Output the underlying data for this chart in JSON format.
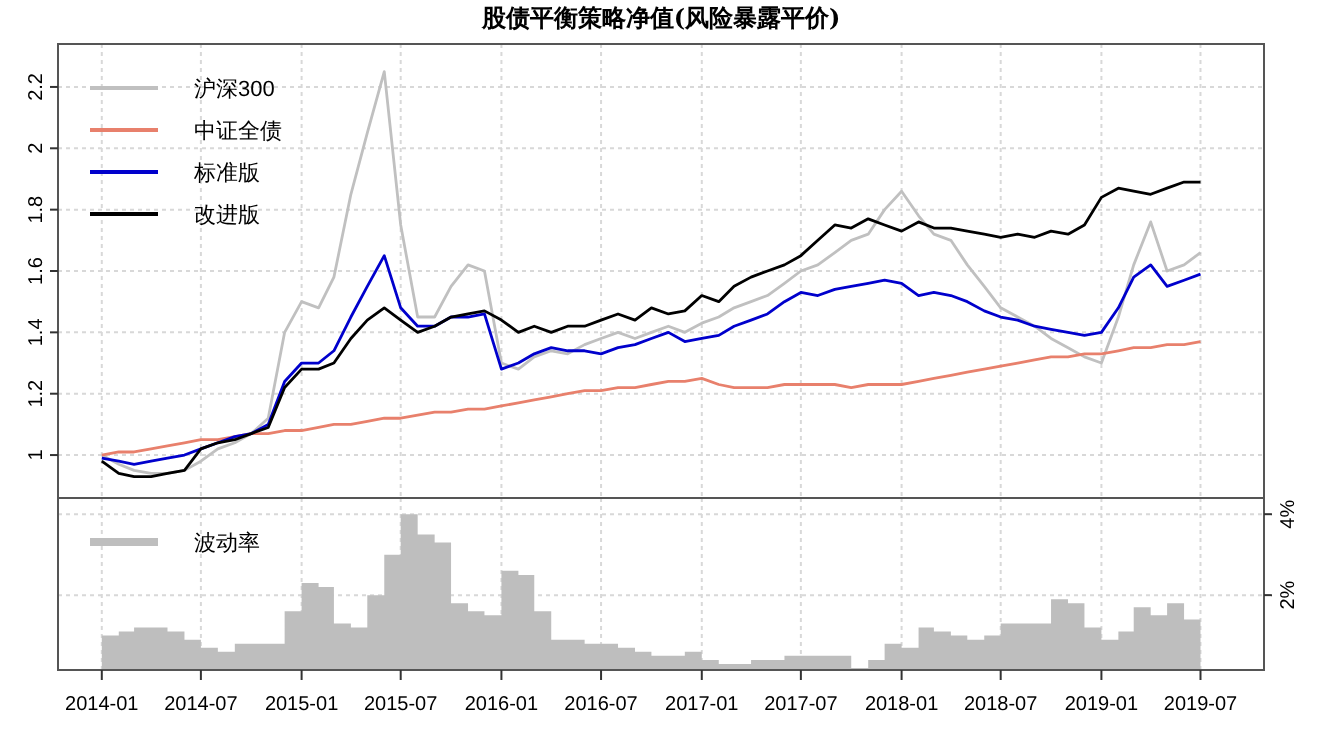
{
  "chart_data": [
    {
      "type": "line",
      "title": "股债平衡策略净值(风险暴露平价)",
      "grid": true,
      "legend": "top left",
      "tick_labels": "y",
      "line_style": "solid",
      "x": [
        "2014-01",
        "2014-02",
        "2014-03",
        "2014-04",
        "2014-05",
        "2014-06",
        "2014-07",
        "2014-08",
        "2014-09",
        "2014-10",
        "2014-11",
        "2014-12",
        "2015-01",
        "2015-02",
        "2015-03",
        "2015-04",
        "2015-05",
        "2015-06",
        "2015-07",
        "2015-08",
        "2015-09",
        "2015-10",
        "2015-11",
        "2015-12",
        "2016-01",
        "2016-02",
        "2016-03",
        "2016-04",
        "2016-05",
        "2016-06",
        "2016-07",
        "2016-08",
        "2016-09",
        "2016-10",
        "2016-11",
        "2016-12",
        "2017-01",
        "2017-02",
        "2017-03",
        "2017-04",
        "2017-05",
        "2017-06",
        "2017-07",
        "2017-08",
        "2017-09",
        "2017-10",
        "2017-11",
        "2017-12",
        "2018-01",
        "2018-02",
        "2018-03",
        "2018-04",
        "2018-05",
        "2018-06",
        "2018-07",
        "2018-08",
        "2018-09",
        "2018-10",
        "2018-11",
        "2018-12",
        "2019-01",
        "2019-02",
        "2019-03",
        "2019-04",
        "2019-05",
        "2019-06",
        "2019-07"
      ],
      "xlim": [
        "2013-10-13",
        "2019-10-25"
      ],
      "xticks": [
        "2014-01",
        "2014-07",
        "2015-01",
        "2015-07",
        "2016-01",
        "2016-07",
        "2017-01",
        "2017-07",
        "2018-01",
        "2018-07",
        "2019-01",
        "2019-07"
      ],
      "ylim": [
        0.86,
        2.34
      ],
      "yticks": [
        1.0,
        1.2,
        1.4,
        1.6,
        1.8,
        2.0,
        2.2
      ],
      "series": [
        {
          "name": "沪深300",
          "color": "#c0c0c0",
          "values": [
            1.0,
            0.97,
            0.95,
            0.94,
            0.94,
            0.95,
            0.98,
            1.02,
            1.04,
            1.07,
            1.12,
            1.4,
            1.5,
            1.48,
            1.58,
            1.85,
            2.05,
            2.25,
            1.75,
            1.45,
            1.45,
            1.55,
            1.62,
            1.6,
            1.3,
            1.28,
            1.32,
            1.34,
            1.33,
            1.36,
            1.38,
            1.4,
            1.38,
            1.4,
            1.42,
            1.4,
            1.43,
            1.45,
            1.48,
            1.5,
            1.52,
            1.56,
            1.6,
            1.62,
            1.66,
            1.7,
            1.72,
            1.8,
            1.86,
            1.78,
            1.72,
            1.7,
            1.62,
            1.55,
            1.48,
            1.45,
            1.42,
            1.38,
            1.35,
            1.32,
            1.3,
            1.45,
            1.62,
            1.76,
            1.6,
            1.62,
            1.66
          ]
        },
        {
          "name": "中证全债",
          "color": "#e8806c",
          "values": [
            1.0,
            1.01,
            1.01,
            1.02,
            1.03,
            1.04,
            1.05,
            1.05,
            1.06,
            1.07,
            1.07,
            1.08,
            1.08,
            1.09,
            1.1,
            1.1,
            1.11,
            1.12,
            1.12,
            1.13,
            1.14,
            1.14,
            1.15,
            1.15,
            1.16,
            1.17,
            1.18,
            1.19,
            1.2,
            1.21,
            1.21,
            1.22,
            1.22,
            1.23,
            1.24,
            1.24,
            1.25,
            1.23,
            1.22,
            1.22,
            1.22,
            1.23,
            1.23,
            1.23,
            1.23,
            1.22,
            1.23,
            1.23,
            1.23,
            1.24,
            1.25,
            1.26,
            1.27,
            1.28,
            1.29,
            1.3,
            1.31,
            1.32,
            1.32,
            1.33,
            1.33,
            1.34,
            1.35,
            1.35,
            1.36,
            1.36,
            1.37
          ]
        },
        {
          "name": "标准版",
          "color": "#0000cc",
          "values": [
            0.99,
            0.98,
            0.97,
            0.98,
            0.99,
            1.0,
            1.02,
            1.04,
            1.06,
            1.07,
            1.1,
            1.24,
            1.3,
            1.3,
            1.34,
            1.45,
            1.55,
            1.65,
            1.48,
            1.42,
            1.42,
            1.45,
            1.45,
            1.46,
            1.28,
            1.3,
            1.33,
            1.35,
            1.34,
            1.34,
            1.33,
            1.35,
            1.36,
            1.38,
            1.4,
            1.37,
            1.38,
            1.39,
            1.42,
            1.44,
            1.46,
            1.5,
            1.53,
            1.52,
            1.54,
            1.55,
            1.56,
            1.57,
            1.56,
            1.52,
            1.53,
            1.52,
            1.5,
            1.47,
            1.45,
            1.44,
            1.42,
            1.41,
            1.4,
            1.39,
            1.4,
            1.48,
            1.58,
            1.62,
            1.55,
            1.57,
            1.59
          ]
        },
        {
          "name": "改进版",
          "color": "#000000",
          "values": [
            0.98,
            0.94,
            0.93,
            0.93,
            0.94,
            0.95,
            1.02,
            1.04,
            1.05,
            1.07,
            1.09,
            1.22,
            1.28,
            1.28,
            1.3,
            1.38,
            1.44,
            1.48,
            1.44,
            1.4,
            1.42,
            1.45,
            1.46,
            1.47,
            1.44,
            1.4,
            1.42,
            1.4,
            1.42,
            1.42,
            1.44,
            1.46,
            1.44,
            1.48,
            1.46,
            1.47,
            1.52,
            1.5,
            1.55,
            1.58,
            1.6,
            1.62,
            1.65,
            1.7,
            1.75,
            1.74,
            1.77,
            1.75,
            1.73,
            1.76,
            1.74,
            1.74,
            1.73,
            1.72,
            1.71,
            1.72,
            1.71,
            1.73,
            1.72,
            1.75,
            1.84,
            1.87,
            1.86,
            1.85,
            1.87,
            1.89,
            1.89
          ]
        }
      ]
    },
    {
      "type": "area",
      "grid": true,
      "legend": "top left",
      "x": [
        "2014-01",
        "2014-02",
        "2014-03",
        "2014-04",
        "2014-05",
        "2014-06",
        "2014-07",
        "2014-08",
        "2014-09",
        "2014-10",
        "2014-11",
        "2014-12",
        "2015-01",
        "2015-02",
        "2015-03",
        "2015-04",
        "2015-05",
        "2015-06",
        "2015-07",
        "2015-08",
        "2015-09",
        "2015-10",
        "2015-11",
        "2015-12",
        "2016-01",
        "2016-02",
        "2016-03",
        "2016-04",
        "2016-05",
        "2016-06",
        "2016-07",
        "2016-08",
        "2016-09",
        "2016-10",
        "2016-11",
        "2016-12",
        "2017-01",
        "2017-02",
        "2017-03",
        "2017-04",
        "2017-05",
        "2017-06",
        "2017-07",
        "2017-08",
        "2017-09",
        "2017-10",
        "2017-11",
        "2017-12",
        "2018-01",
        "2018-02",
        "2018-03",
        "2018-04",
        "2018-05",
        "2018-06",
        "2018-07",
        "2018-08",
        "2018-09",
        "2018-10",
        "2018-11",
        "2018-12",
        "2019-01",
        "2019-02",
        "2019-03",
        "2019-04",
        "2019-05",
        "2019-06",
        "2019-07"
      ],
      "xlim": [
        "2013-10-13",
        "2019-10-25"
      ],
      "xticks": [
        "2014-01",
        "2014-07",
        "2015-01",
        "2015-07",
        "2016-01",
        "2016-07",
        "2017-01",
        "2017-07",
        "2018-01",
        "2018-07",
        "2019-01",
        "2019-07"
      ],
      "y2lim": [
        0.15,
        4.4
      ],
      "y2ticks": [
        {
          "value": 2,
          "label": "2%"
        },
        {
          "value": 4,
          "label": "4%"
        }
      ],
      "series": [
        {
          "name": "波动率",
          "color": "#bebebe",
          "axis": "y2",
          "values": [
            1.0,
            1.1,
            1.2,
            1.2,
            1.1,
            0.9,
            0.7,
            0.6,
            0.8,
            0.8,
            0.8,
            1.6,
            2.3,
            2.2,
            1.3,
            1.2,
            2.0,
            3.0,
            4.0,
            3.5,
            3.3,
            1.8,
            1.6,
            1.5,
            2.6,
            2.5,
            1.6,
            0.9,
            0.9,
            0.8,
            0.8,
            0.7,
            0.6,
            0.5,
            0.5,
            0.6,
            0.4,
            0.3,
            0.3,
            0.4,
            0.4,
            0.5,
            0.5,
            0.5,
            0.5,
            0.2,
            0.4,
            0.8,
            0.7,
            1.2,
            1.1,
            1.0,
            0.9,
            1.0,
            1.3,
            1.3,
            1.3,
            1.9,
            1.8,
            1.2,
            0.9,
            1.1,
            1.7,
            1.5,
            1.8,
            1.4,
            1.0
          ]
        }
      ]
    }
  ]
}
